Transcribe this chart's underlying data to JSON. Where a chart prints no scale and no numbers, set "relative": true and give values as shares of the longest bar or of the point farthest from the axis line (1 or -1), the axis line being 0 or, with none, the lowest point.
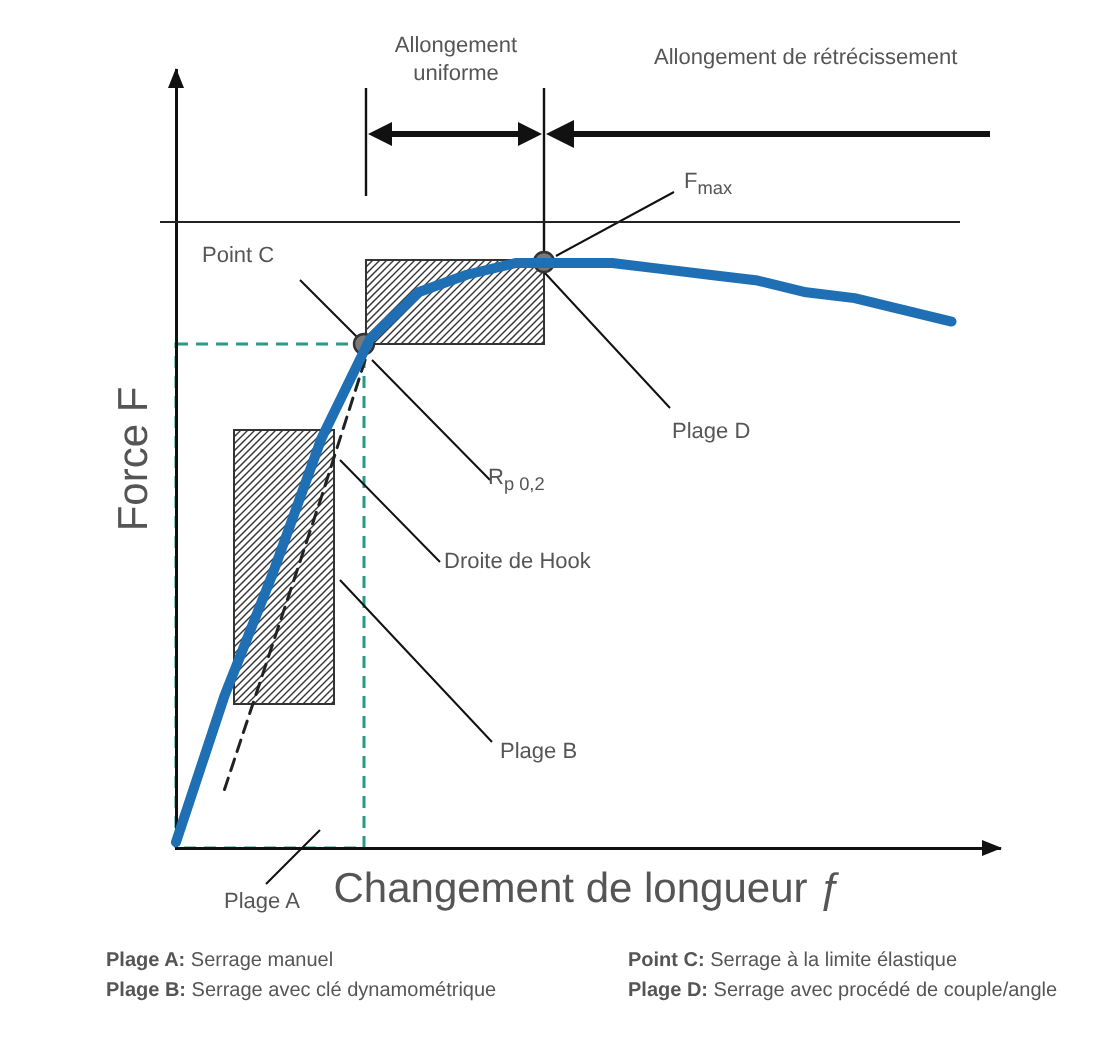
{
  "chart_data": {
    "type": "line",
    "relative": true,
    "xlabel": "Changement de longueur ƒ",
    "ylabel": "Force F",
    "categories": [
      null,
      null,
      null,
      null,
      null,
      null,
      null,
      null,
      null,
      null,
      null,
      null,
      null,
      null,
      null,
      null,
      null,
      null
    ],
    "series": [
      {
        "color": "#1f6fb5",
        "values": [
          0.01,
          0.26,
          0.47,
          0.7,
          0.87,
          0.95,
          0.98,
          1.0,
          1.0,
          1.0,
          0.99,
          0.98,
          0.97,
          0.95,
          0.94,
          0.92,
          0.9,
          null
        ]
      },
      {
        "color": "#222222",
        "line_style": "dashed",
        "values": [
          null,
          0.1,
          0.35,
          0.6,
          0.86,
          null,
          null,
          null,
          null,
          null,
          null,
          null,
          null,
          null,
          null,
          null,
          null,
          null
        ]
      }
    ],
    "ref_lines": [
      {
        "axis": "y",
        "value": 1.07,
        "color": "#222222"
      }
    ],
    "annotations": [
      "Allongement uniforme",
      "Allongement de rétrécissement",
      "F$_{max}$",
      "Point C",
      "R$_{p 0,2}$",
      "Plage D",
      "Droite de Hook",
      "Plage B",
      "Plage A",
      "Plage A: Serrage manuel",
      "Plage  B: Serrage avec clé dynamométrique",
      "Point C: Serrage à la limite élastique",
      "Plage D: Serrage avec procédé de couple/angle"
    ],
    "grid": false,
    "legend": false
  }
}
